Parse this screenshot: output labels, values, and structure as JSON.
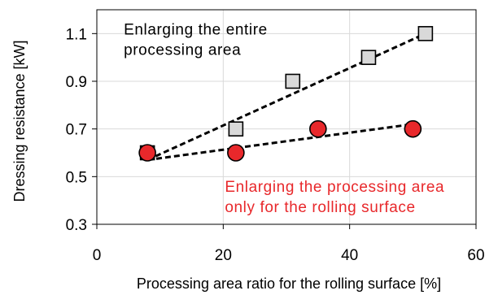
{
  "chart_data": {
    "type": "scatter",
    "xlabel": "Processing area ratio for the rolling surface [%]",
    "ylabel": "Dressing resistance [kW]",
    "xlim": [
      0,
      60
    ],
    "ylim": [
      0.3,
      1.2
    ],
    "x_ticks": [
      0,
      20,
      40,
      60
    ],
    "x_tick_labels": [
      "0",
      "20",
      "40",
      "60"
    ],
    "y_ticks": [
      0.3,
      0.5,
      0.7,
      0.9,
      1.1
    ],
    "y_tick_labels": [
      "0.3",
      "0.5",
      "0.7",
      "0.9",
      "1.1"
    ],
    "grid": true,
    "legend": "none",
    "series": [
      {
        "marker": "square",
        "color": "#d9d9d9",
        "x": [
          8,
          22,
          31,
          43,
          52
        ],
        "y": [
          0.6,
          0.7,
          0.9,
          1.0,
          1.1
        ],
        "trendline": {
          "style": "dashed",
          "x": [
            8,
            52
          ],
          "y": [
            0.57,
            1.1
          ]
        }
      },
      {
        "marker": "circle",
        "color": "#e8282b",
        "x": [
          8,
          22,
          35,
          50
        ],
        "y": [
          0.6,
          0.6,
          0.7,
          0.7
        ],
        "trendline": {
          "style": "dashed",
          "x": [
            8,
            50
          ],
          "y": [
            0.57,
            0.72
          ]
        }
      }
    ],
    "annotations": [
      {
        "lines": [
          "Enlarging the entire",
          "processing area"
        ],
        "color": "#000000",
        "x": 4,
        "y": 1.12
      },
      {
        "lines": [
          "Enlarging the processing area",
          "only for the rolling surface"
        ],
        "color": "#e8282b",
        "x": 20,
        "y": 0.46
      }
    ]
  }
}
